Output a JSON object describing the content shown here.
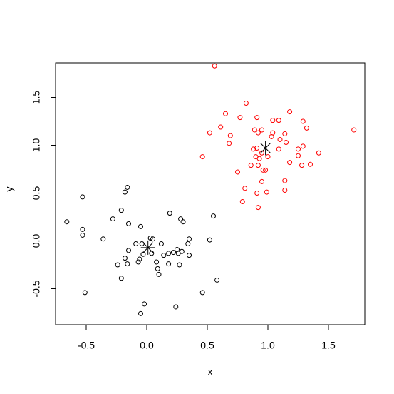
{
  "chart_data": {
    "type": "scatter",
    "xlabel": "x",
    "ylabel": "y",
    "xlim": [
      -0.753,
      1.8
    ],
    "ylim": [
      -0.877,
      1.862
    ],
    "xticks": [
      -0.5,
      {
        "value": 0,
        "label": "0.0"
      },
      0.5,
      {
        "value": 1,
        "label": "1.0"
      },
      1.5
    ],
    "yticks": [
      -0.5,
      {
        "value": 0,
        "label": "0.0"
      },
      0.5,
      {
        "value": 1,
        "label": "1.0"
      },
      1.5
    ],
    "series": [
      {
        "color": "#000000",
        "marker": "circle",
        "x": [
          -0.66,
          -0.53,
          -0.53,
          -0.53,
          -0.51,
          -0.36,
          -0.28,
          -0.24,
          -0.21,
          -0.21,
          -0.18,
          -0.16,
          -0.18,
          -0.16,
          -0.15,
          -0.15,
          -0.09,
          -0.07,
          -0.06,
          -0.05,
          -0.04,
          -0.03,
          -0.02,
          -0.05,
          0.03,
          0.05,
          0.04,
          0.08,
          0.09,
          0.1,
          0.12,
          0.14,
          0.18,
          0.18,
          0.19,
          0.22,
          0.25,
          0.26,
          0.27,
          0.29,
          0.28,
          0.3,
          0.34,
          0.35,
          0.35,
          0.24,
          0.46,
          0.52,
          0.55,
          0.58
        ],
        "y": [
          0.2,
          0.46,
          0.12,
          0.06,
          -0.54,
          0.02,
          0.23,
          -0.25,
          0.32,
          -0.39,
          0.51,
          0.56,
          -0.18,
          -0.24,
          0.18,
          -0.1,
          -0.03,
          -0.22,
          -0.19,
          0.15,
          -0.03,
          -0.14,
          -0.66,
          -0.76,
          0.03,
          0.02,
          -0.13,
          -0.22,
          -0.29,
          -0.35,
          -0.03,
          -0.15,
          -0.24,
          -0.13,
          0.29,
          -0.12,
          -0.09,
          -0.13,
          -0.25,
          -0.11,
          0.23,
          0.2,
          -0.03,
          0.02,
          -0.15,
          -0.69,
          -0.54,
          0.01,
          0.26,
          -0.41
        ]
      },
      {
        "color": "#ff0000",
        "marker": "circle",
        "x": [
          0.56,
          0.82,
          0.65,
          0.77,
          0.91,
          1.18,
          1.29,
          1.32,
          1.71,
          0.52,
          0.61,
          0.69,
          0.68,
          0.89,
          0.92,
          0.95,
          1.04,
          1.09,
          1.04,
          1.03,
          1.14,
          1.1,
          1.15,
          1.09,
          1.25,
          1.29,
          1.42,
          1.25,
          1.18,
          1.28,
          1.35,
          0.88,
          0.91,
          0.93,
          0.9,
          0.95,
          1.0,
          0.86,
          0.92,
          0.98,
          0.96,
          0.75,
          0.95,
          1.14,
          0.81,
          0.91,
          0.99,
          1.14,
          0.79,
          0.92,
          0.46
        ],
        "y": [
          1.83,
          1.44,
          1.33,
          1.29,
          1.29,
          1.35,
          1.25,
          1.18,
          1.16,
          1.13,
          1.19,
          1.1,
          1.02,
          1.16,
          1.13,
          1.16,
          1.26,
          1.26,
          1.13,
          1.09,
          1.12,
          1.06,
          1.03,
          0.96,
          0.96,
          0.99,
          0.92,
          0.89,
          0.82,
          0.79,
          0.8,
          0.96,
          0.97,
          0.86,
          0.88,
          0.92,
          0.88,
          0.79,
          0.79,
          0.74,
          0.74,
          0.72,
          0.62,
          0.63,
          0.55,
          0.5,
          0.51,
          0.53,
          0.41,
          0.35,
          0.88
        ]
      },
      {
        "color": "#000000",
        "marker": "asterisk",
        "x": [
          0.01,
          0.98
        ],
        "y": [
          -0.07,
          0.97
        ]
      }
    ]
  }
}
